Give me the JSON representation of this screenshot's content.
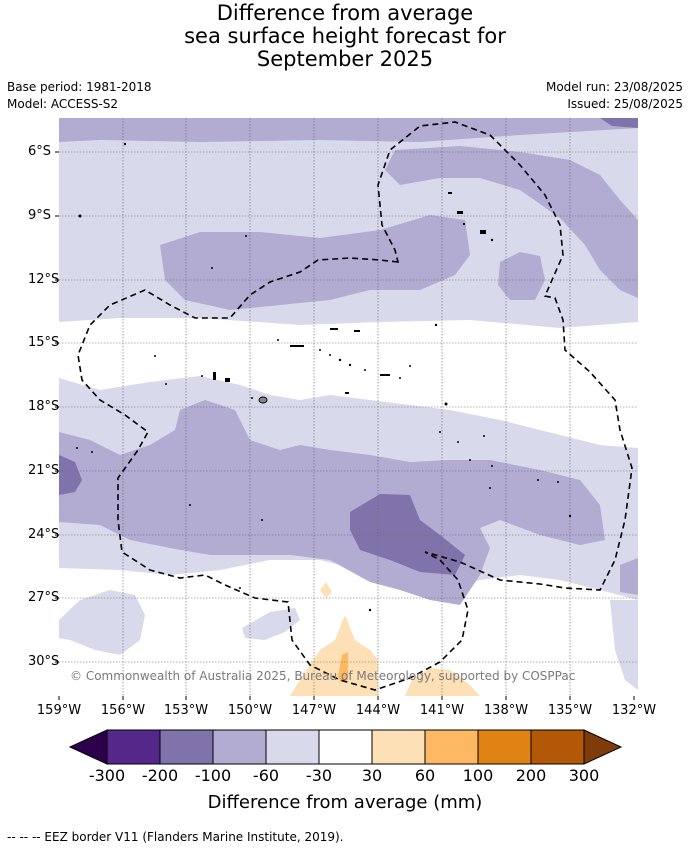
{
  "title": {
    "line1": "Difference from average",
    "line2": "sea surface height forecast for",
    "line3": "September 2025"
  },
  "meta": {
    "base_period": "Base period: 1981-2018",
    "model": "Model: ACCESS-S2",
    "model_run": "Model run: 23/08/2025",
    "issued": "Issued: 25/08/2025"
  },
  "map": {
    "lat_labels": [
      "6°S",
      "9°S",
      "12°S",
      "15°S",
      "18°S",
      "21°S",
      "24°S",
      "27°S",
      "30°S"
    ],
    "lon_labels": [
      "159°W",
      "156°W",
      "153°W",
      "150°W",
      "147°W",
      "144°W",
      "141°W",
      "138°W",
      "135°W",
      "132°W"
    ],
    "copyright": "© Commonwealth of Australia 2025, Bureau of Meteorology, supported by COSPPac"
  },
  "colorbar": {
    "title": "Difference from average (mm)",
    "ticks": [
      "-300",
      "-200",
      "-100",
      "-60",
      "-30",
      "30",
      "60",
      "100",
      "200",
      "300"
    ],
    "colors": [
      "#2d004b",
      "#542788",
      "#8073ac",
      "#b2abd2",
      "#d8daeb",
      "#ffffff",
      "#fee0b6",
      "#fdb863",
      "#e08214",
      "#b35806",
      "#7f3b08"
    ]
  },
  "legend": {
    "eez_note": "--  --  -- EEZ border V11 (Flanders Marine Institute, 2019)."
  }
}
